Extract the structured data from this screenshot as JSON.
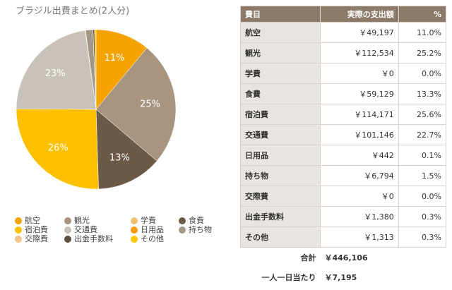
{
  "chart_data": {
    "type": "pie",
    "title": "ブラジル出費まとめ(2人分)",
    "categories": [
      "航空",
      "観光",
      "学費",
      "食費",
      "宿泊費",
      "交通費",
      "日用品",
      "持ち物",
      "交際費",
      "出金手数料",
      "その他"
    ],
    "values": [
      11.0,
      25.2,
      0,
      13.3,
      25.6,
      22.7,
      0.1,
      1.5,
      0,
      0.3,
      0.3
    ],
    "value_labels": [
      "11%",
      "25%",
      null,
      "13%",
      "26%",
      "23%",
      null,
      null,
      null,
      null,
      null
    ],
    "colors": [
      "#f5a300",
      "#a89580",
      "#f0c070",
      "#6b5a48",
      "#ffc000",
      "#c9c2ba",
      "#ff9a00",
      "#a39888",
      "#f2c486",
      "#5e4e3e",
      "#ffc800"
    ]
  },
  "table": {
    "header": [
      "費目",
      "実際の支出額",
      "%"
    ],
    "rows": [
      [
        "航空",
        "￥49,197",
        "11.0%"
      ],
      [
        "観光",
        "￥112,534",
        "25.2%"
      ],
      [
        "学費",
        "￥0",
        "0.0%"
      ],
      [
        "食費",
        "￥59,129",
        "13.3%"
      ],
      [
        "宿泊費",
        "￥114,171",
        "25.6%"
      ],
      [
        "交通費",
        "￥101,146",
        "22.7%"
      ],
      [
        "日用品",
        "￥442",
        "0.1%"
      ],
      [
        "持ち物",
        "￥6,794",
        "1.5%"
      ],
      [
        "交際費",
        "￥0",
        "0.0%"
      ],
      [
        "出金手数料",
        "￥1,380",
        "0.3%"
      ],
      [
        "その他",
        "￥1,313",
        "0.3%"
      ]
    ],
    "footer": [
      [
        "合計",
        "￥446,106"
      ],
      [
        "一人一日当たり",
        "￥7,195"
      ]
    ]
  }
}
